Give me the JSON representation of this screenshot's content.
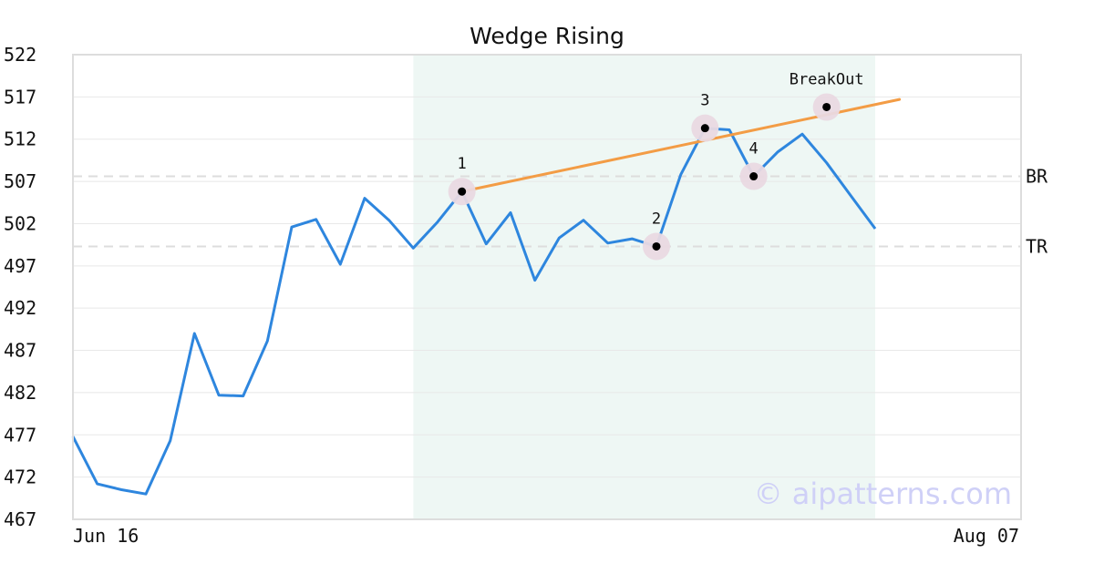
{
  "chart_data": {
    "type": "line",
    "title": "Wedge Rising",
    "xlabel": "",
    "ylabel": "",
    "ylim": [
      467,
      522
    ],
    "y_ticks": [
      522,
      517,
      512,
      507,
      502,
      497,
      492,
      487,
      482,
      477,
      472,
      467
    ],
    "x_tick_labels": [
      "Jun 16",
      "Aug 07"
    ],
    "grid": "horizontal",
    "x": [
      0,
      1,
      2,
      3,
      4,
      5,
      6,
      7,
      8,
      9,
      10,
      11,
      12,
      13,
      14,
      15,
      16,
      17,
      18,
      19,
      20,
      21,
      22,
      23,
      24,
      25,
      26,
      27,
      28,
      29,
      30,
      31,
      32,
      33,
      34
    ],
    "series": [
      {
        "color": "#2e86de",
        "values": [
          476.8,
          471.2,
          470.5,
          470.0,
          476.3,
          489.0,
          481.7,
          481.6,
          488.1,
          501.6,
          502.5,
          497.2,
          505.0,
          502.4,
          499.1,
          502.2,
          505.8,
          499.6,
          503.3,
          495.3,
          500.3,
          502.4,
          499.7,
          500.2,
          499.3,
          507.8,
          513.3,
          513.1,
          507.6,
          510.5,
          512.6,
          509.2,
          505.3,
          501.4,
          null
        ]
      }
    ],
    "highlight_region": {
      "x_start": 14,
      "x_end": 33,
      "color": "#eef7f4"
    },
    "trendline": {
      "color": "#f39c45",
      "from": {
        "x": 16,
        "y": 505.8
      },
      "to": {
        "x": 34,
        "y": 516.7
      }
    },
    "reference_lines": [
      {
        "label": "BR",
        "y": 507.6
      },
      {
        "label": "TR",
        "y": 499.3
      }
    ],
    "markers": [
      {
        "label": "1",
        "x": 16,
        "y": 505.8
      },
      {
        "label": "2",
        "x": 24,
        "y": 499.3
      },
      {
        "label": "3",
        "x": 26,
        "y": 513.3
      },
      {
        "label": "4",
        "x": 28,
        "y": 507.6
      },
      {
        "label": "BreakOut",
        "x": 31,
        "y": 515.8
      }
    ],
    "watermark": "© aipatterns.com"
  }
}
